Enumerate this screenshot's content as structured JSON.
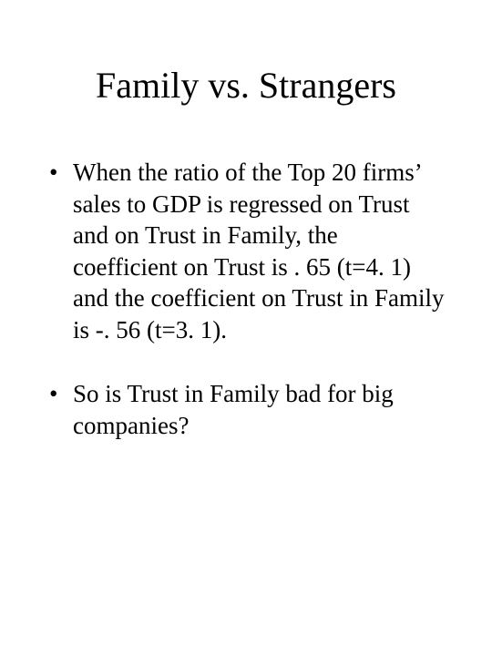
{
  "slide": {
    "title": "Family vs. Strangers",
    "bullets": [
      "When the ratio of the Top 20 firms’ sales to GDP is regressed on Trust and on Trust in Family, the coefficient on Trust is . 65 (t=4. 1) and the coefficient on Trust  in Family is -. 56 (t=3. 1).",
      "So is Trust in Family bad for big companies?"
    ]
  },
  "style": {
    "background_color": "#ffffff",
    "text_color": "#000000",
    "font_family": "Times New Roman",
    "title_fontsize": 40,
    "body_fontsize": 27
  }
}
